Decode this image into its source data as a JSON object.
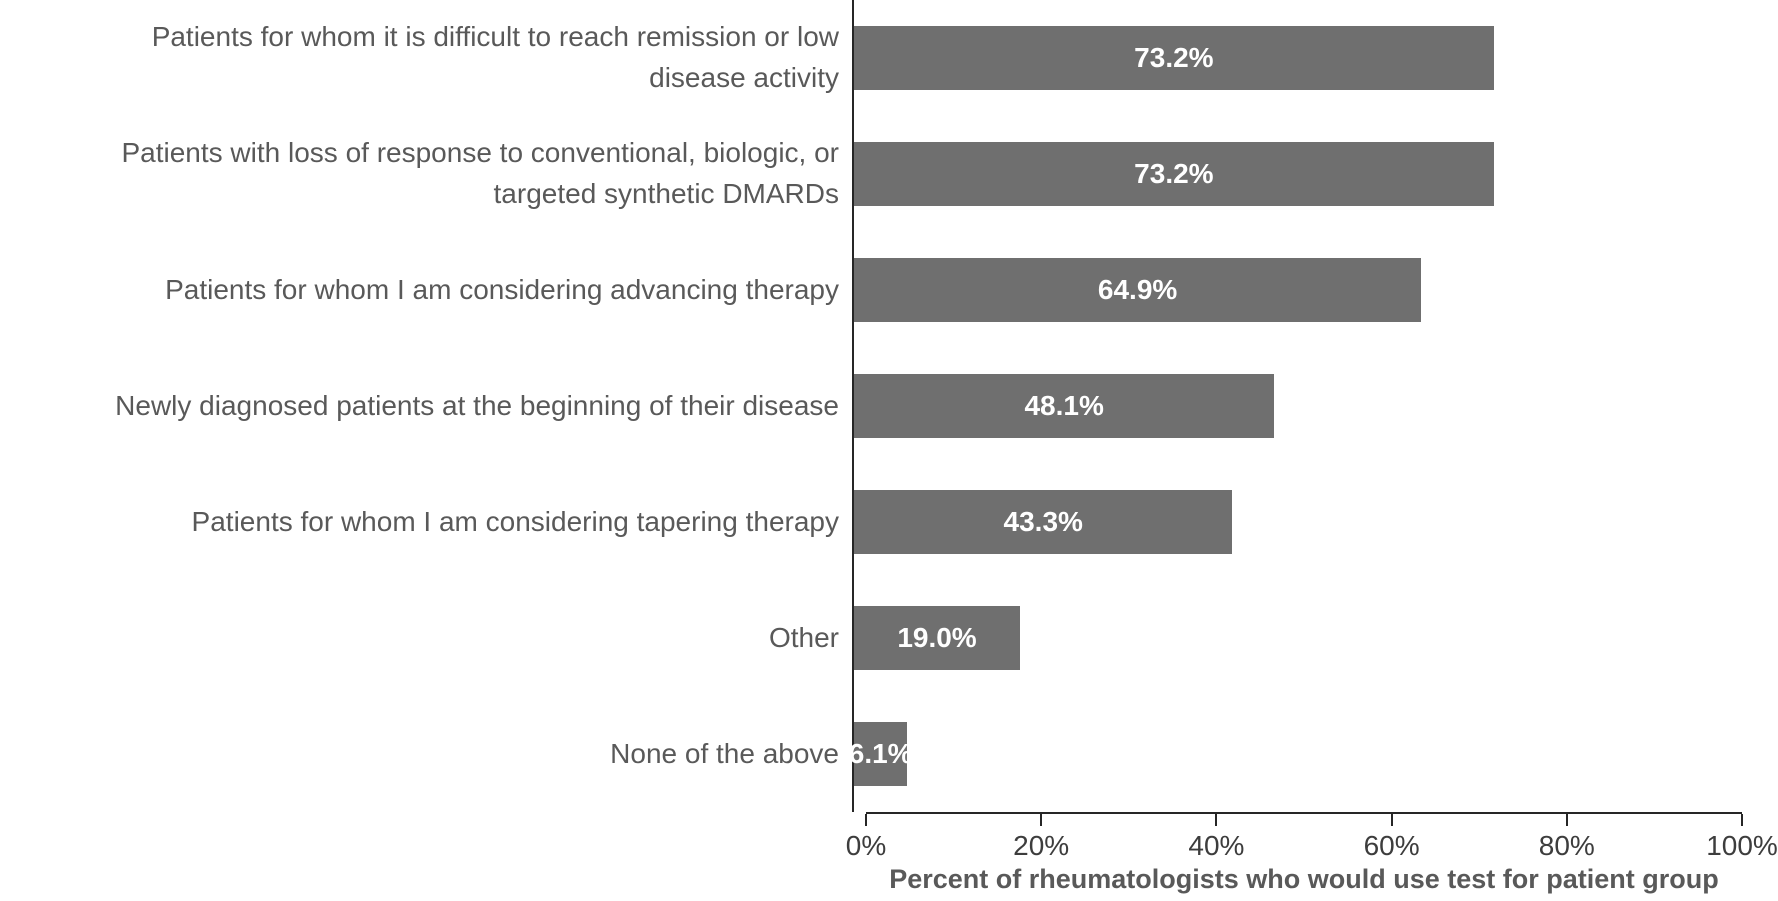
{
  "chart_data": {
    "type": "bar",
    "orientation": "horizontal",
    "categories": [
      "Patients for whom it is difficult to reach remission or low\ndisease activity",
      "Patients with loss of response to conventional, biologic, or\ntargeted synthetic DMARDs",
      "Patients for whom I am considering advancing therapy",
      "Newly diagnosed patients at the beginning of their disease",
      "Patients for whom I am considering tapering therapy",
      "Other",
      "None of the above"
    ],
    "values": [
      73.2,
      73.2,
      64.9,
      48.1,
      43.3,
      19.0,
      6.1
    ],
    "value_labels": [
      "73.2%",
      "73.2%",
      "64.9%",
      "48.1%",
      "43.3%",
      "19.0%",
      "6.1%"
    ],
    "title": "",
    "xlabel": "Percent of rheumatologists who would use test for patient group",
    "ylabel": "",
    "xlim": [
      0,
      100
    ],
    "x_ticks": [
      0,
      20,
      40,
      60,
      80,
      100
    ],
    "x_tick_labels": [
      "0%",
      "20%",
      "40%",
      "60%",
      "80%",
      "100%"
    ],
    "grid": false,
    "legend_position": "none",
    "bar_color": "#6F6F6F",
    "value_label_color": "#ffffff",
    "axis_line_color": "#262626",
    "category_label_color": "#595959"
  }
}
